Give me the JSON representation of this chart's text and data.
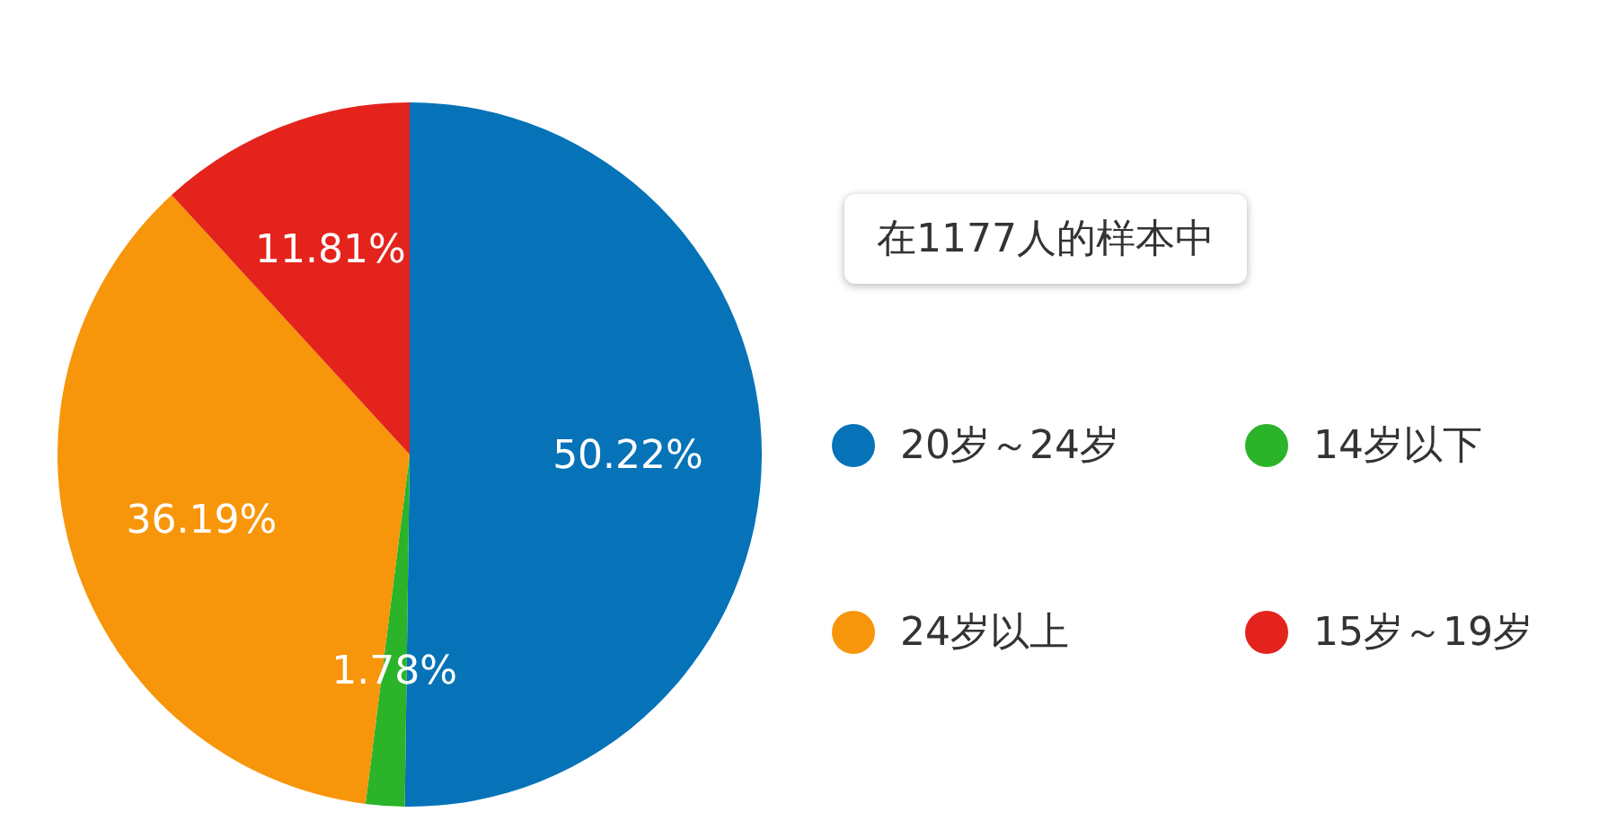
{
  "chart_data": {
    "type": "pie",
    "title": "在1177人的样本中",
    "categories": [
      "20岁～24岁",
      "14岁以下",
      "24岁以上",
      "15岁～19岁"
    ],
    "values": [
      50.22,
      1.78,
      36.19,
      11.81
    ],
    "colors": [
      "#0673b8",
      "#2bb32a",
      "#f7960a",
      "#e3231c"
    ],
    "value_labels": [
      "50.22%",
      "1.78%",
      "36.19%",
      "11.81%"
    ],
    "legend": "right"
  }
}
